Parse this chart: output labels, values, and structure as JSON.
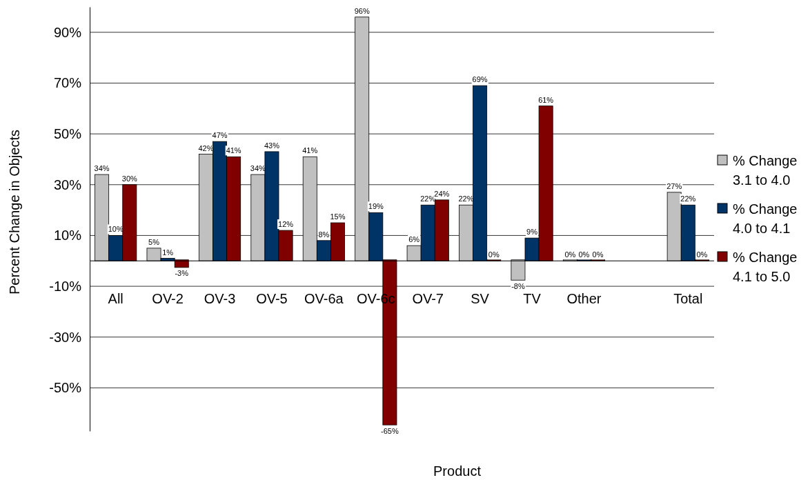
{
  "chart_data": {
    "type": "bar",
    "xlabel": "Product",
    "ylabel": "Percent Change in Objects",
    "categories": [
      "All",
      "OV-2",
      "OV-3",
      "OV-5",
      "OV-6a",
      "OV-6c",
      "OV-7",
      "SV",
      "TV",
      "Other",
      null,
      "Total"
    ],
    "series": [
      {
        "name": "% Change 3.1 to 4.0",
        "color": "#c0c0c0",
        "values": [
          34,
          5,
          42,
          34,
          41,
          96,
          6,
          22,
          -8,
          0,
          null,
          27
        ],
        "value_labels": [
          "34%",
          "5%",
          "42%",
          "34%",
          "41%",
          "96%",
          "6%",
          "22%",
          "-8%",
          "0%",
          null,
          "27%"
        ]
      },
      {
        "name": "% Change 4.0 to 4.1",
        "color": "#003366",
        "values": [
          10,
          1,
          47,
          43,
          8,
          19,
          22,
          69,
          9,
          0,
          null,
          22
        ],
        "value_labels": [
          "10%",
          "1%",
          "47%",
          "43%",
          "8%",
          "19%",
          "22%",
          "69%",
          "9%",
          "0%",
          null,
          "22%"
        ]
      },
      {
        "name": "% Change 4.1 to 5.0",
        "color": "#800000",
        "values": [
          30,
          -3,
          41,
          12,
          15,
          -65,
          24,
          0,
          61,
          0,
          null,
          0
        ],
        "value_labels": [
          "30%",
          "-3%",
          "41%",
          "12%",
          "15%",
          "-65%",
          "24%",
          "0%",
          "61%",
          "0%",
          null,
          "0%"
        ]
      }
    ],
    "ylim": [
      -67,
      100
    ],
    "yticks": [
      {
        "value": -50,
        "label": "-50%"
      },
      {
        "value": -30,
        "label": "-30%"
      },
      {
        "value": -10,
        "label": "-10%"
      },
      {
        "value": 10,
        "label": "10%"
      },
      {
        "value": 30,
        "label": "30%"
      },
      {
        "value": 50,
        "label": "50%"
      },
      {
        "value": 70,
        "label": "70%"
      },
      {
        "value": 90,
        "label": "90%"
      }
    ],
    "grid": "y",
    "legend": "right"
  }
}
